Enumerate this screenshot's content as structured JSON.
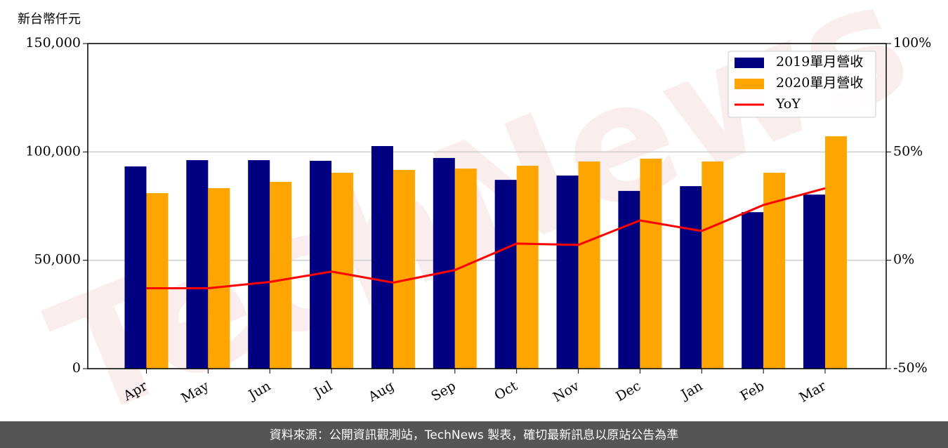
{
  "chart_data": {
    "type": "bar",
    "y_axis_label": "新台幣仟元",
    "watermark": "TechNews",
    "footer": "資料來源：公開資訊觀測站，TechNews 製表，確切最新訊息以原站公告為準",
    "categories": [
      "Apr",
      "May",
      "Jun",
      "Jul",
      "Aug",
      "Sep",
      "Oct",
      "Nov",
      "Dec",
      "Jan",
      "Feb",
      "Mar"
    ],
    "series": [
      {
        "name": "2019單月營收",
        "color": "#000080",
        "values": [
          93300,
          96200,
          96200,
          95900,
          102700,
          97200,
          87100,
          89100,
          82000,
          84200,
          72200,
          80300
        ]
      },
      {
        "name": "2020單月營收",
        "color": "#ffa500",
        "values": [
          81000,
          83300,
          86200,
          90400,
          91700,
          92300,
          93600,
          95600,
          96900,
          95600,
          90400,
          107200
        ]
      },
      {
        "name": "YoY",
        "type": "line",
        "axis": "y2",
        "color": "#ff0000",
        "values": [
          -12.9,
          -12.9,
          -10.0,
          -5.2,
          -10.3,
          -4.5,
          7.7,
          7.1,
          18.4,
          13.5,
          25.5,
          33.2
        ]
      }
    ],
    "ylim": [
      0,
      150000
    ],
    "yticks": [
      0,
      {
        "value": 50000,
        "label": "50,000"
      },
      {
        "value": 100000,
        "label": "100,000"
      },
      {
        "value": 150000,
        "label": "150,000"
      }
    ],
    "y2lim": [
      -50,
      100
    ],
    "y2ticks": [
      {
        "value": -50,
        "label": "-50%"
      },
      {
        "value": 0,
        "label": "0%"
      },
      {
        "value": 50,
        "label": "50%"
      },
      {
        "value": 100,
        "label": "100%"
      }
    ],
    "grid": true,
    "legend": "upper right"
  }
}
